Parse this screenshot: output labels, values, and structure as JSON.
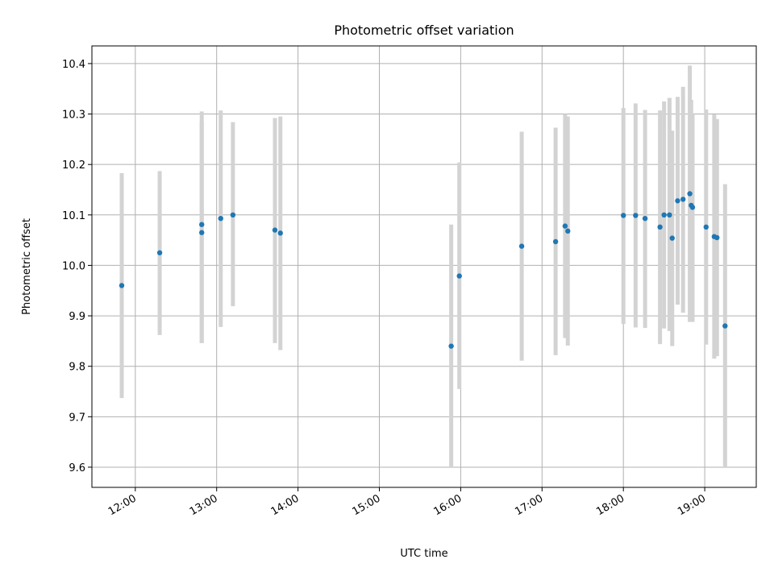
{
  "chart_data": {
    "type": "scatter",
    "title": "Photometric offset variation",
    "xlabel": "UTC time",
    "ylabel": "Photometric offset",
    "x_tick_labels": [
      "12:00",
      "13:00",
      "14:00",
      "15:00",
      "16:00",
      "17:00",
      "18:00",
      "19:00"
    ],
    "x_tick_hours": [
      12,
      13,
      14,
      15,
      16,
      17,
      18,
      19
    ],
    "y_ticks": [
      9.6,
      9.7,
      9.8,
      9.9,
      10.0,
      10.1,
      10.2,
      10.3,
      10.4
    ],
    "y_tick_labels": [
      "9.6",
      "9.7",
      "9.8",
      "9.9",
      "10.0",
      "10.1",
      "10.2",
      "10.3",
      "10.4"
    ],
    "xlim": [
      "11:28",
      "19:38"
    ],
    "ylim": [
      9.56,
      10.435
    ],
    "grid": true,
    "colors": {
      "point": "#1f77b4",
      "errorbar": "#d3d3d3",
      "grid": "#b0b0b0"
    },
    "points": [
      {
        "x": "11:50",
        "y": 9.96,
        "yerr": [
          9.737,
          10.183
        ]
      },
      {
        "x": "12:18",
        "y": 10.025,
        "yerr": [
          9.862,
          10.187
        ]
      },
      {
        "x": "12:49",
        "y": 10.081,
        "yerr": [
          9.846,
          10.305
        ]
      },
      {
        "x": "12:49",
        "y": 10.065,
        "yerr": [
          9.846,
          10.285
        ]
      },
      {
        "x": "13:03",
        "y": 10.093,
        "yerr": [
          9.878,
          10.307
        ]
      },
      {
        "x": "13:12",
        "y": 10.1,
        "yerr": [
          9.919,
          10.284
        ]
      },
      {
        "x": "13:43",
        "y": 10.07,
        "yerr": [
          9.846,
          10.292
        ]
      },
      {
        "x": "13:47",
        "y": 10.064,
        "yerr": [
          9.832,
          10.295
        ]
      },
      {
        "x": "15:53",
        "y": 9.84,
        "yerr": [
          9.6,
          10.081
        ]
      },
      {
        "x": "15:59",
        "y": 9.979,
        "yerr": [
          9.755,
          10.204
        ]
      },
      {
        "x": "16:45",
        "y": 10.038,
        "yerr": [
          9.811,
          10.265
        ]
      },
      {
        "x": "17:10",
        "y": 10.047,
        "yerr": [
          9.822,
          10.273
        ]
      },
      {
        "x": "17:17",
        "y": 10.078,
        "yerr": [
          9.856,
          10.3
        ]
      },
      {
        "x": "17:19",
        "y": 10.068,
        "yerr": [
          9.841,
          10.295
        ]
      },
      {
        "x": "18:00",
        "y": 10.099,
        "yerr": [
          9.884,
          10.312
        ]
      },
      {
        "x": "18:09",
        "y": 10.099,
        "yerr": [
          9.877,
          10.321
        ]
      },
      {
        "x": "18:16",
        "y": 10.093,
        "yerr": [
          9.876,
          10.308
        ]
      },
      {
        "x": "18:27",
        "y": 10.076,
        "yerr": [
          9.844,
          10.307
        ]
      },
      {
        "x": "18:30",
        "y": 10.1,
        "yerr": [
          9.875,
          10.325
        ]
      },
      {
        "x": "18:34",
        "y": 10.1,
        "yerr": [
          9.87,
          10.332
        ]
      },
      {
        "x": "18:36",
        "y": 10.054,
        "yerr": [
          9.84,
          10.267
        ]
      },
      {
        "x": "18:40",
        "y": 10.128,
        "yerr": [
          9.922,
          10.334
        ]
      },
      {
        "x": "18:44",
        "y": 10.131,
        "yerr": [
          9.906,
          10.354
        ]
      },
      {
        "x": "18:49",
        "y": 10.142,
        "yerr": [
          9.888,
          10.396
        ]
      },
      {
        "x": "18:50",
        "y": 10.119,
        "yerr": [
          9.912,
          10.328
        ]
      },
      {
        "x": "18:51",
        "y": 10.115,
        "yerr": [
          9.888,
          10.3
        ]
      },
      {
        "x": "19:01",
        "y": 10.076,
        "yerr": [
          9.843,
          10.309
        ]
      },
      {
        "x": "19:07",
        "y": 10.057,
        "yerr": [
          9.815,
          10.299
        ]
      },
      {
        "x": "19:09",
        "y": 10.055,
        "yerr": [
          9.82,
          10.29
        ]
      },
      {
        "x": "19:15",
        "y": 9.88,
        "yerr": [
          9.6,
          10.161
        ]
      }
    ]
  }
}
